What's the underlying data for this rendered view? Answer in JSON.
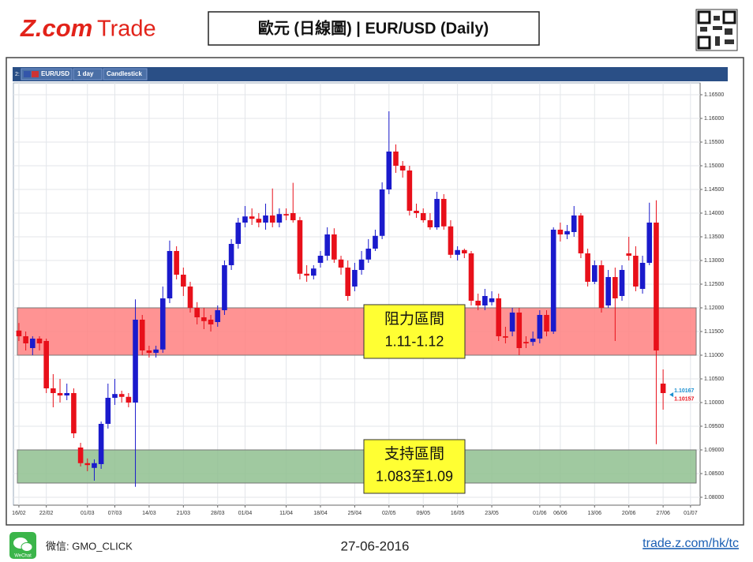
{
  "header": {
    "logo": "Z.com",
    "logo_suffix": "Trade",
    "title": "歐元 (日線圖) | EUR/USD (Daily)"
  },
  "toolbar": {
    "index": "2:",
    "symbol": "EUR/USD",
    "period": "1 day",
    "style": "Candlestick"
  },
  "chart_data": {
    "type": "candlestick",
    "up_color": "#1a1acc",
    "down_color": "#e8101a",
    "grid": true,
    "xlim": [
      -0.8,
      99.4
    ],
    "ylim": [
      1.07833,
      1.1675
    ],
    "xticks": [
      {
        "value": 0,
        "label": "16/02"
      },
      {
        "value": 4,
        "label": "22/02"
      },
      {
        "value": 10,
        "label": "01/03"
      },
      {
        "value": 14,
        "label": "07/03"
      },
      {
        "value": 19,
        "label": "14/03"
      },
      {
        "value": 24,
        "label": "21/03"
      },
      {
        "value": 29,
        "label": "28/03"
      },
      {
        "value": 33,
        "label": "01/04"
      },
      {
        "value": 39,
        "label": "11/04"
      },
      {
        "value": 44,
        "label": "18/04"
      },
      {
        "value": 49,
        "label": "25/04"
      },
      {
        "value": 54,
        "label": "02/05"
      },
      {
        "value": 59,
        "label": "09/05"
      },
      {
        "value": 64,
        "label": "16/05"
      },
      {
        "value": 69,
        "label": "23/05"
      },
      {
        "value": 76,
        "label": "01/06"
      },
      {
        "value": 79,
        "label": "06/06"
      },
      {
        "value": 84,
        "label": "13/06"
      },
      {
        "value": 89,
        "label": "20/06"
      },
      {
        "value": 94,
        "label": "27/06"
      },
      {
        "value": 98,
        "label": "01/07"
      }
    ],
    "yticks": [
      {
        "value": 1.165,
        "label": "1.16500"
      },
      {
        "value": 1.16,
        "label": "1.16000"
      },
      {
        "value": 1.155,
        "label": "1.15500"
      },
      {
        "value": 1.15,
        "label": "1.15000"
      },
      {
        "value": 1.145,
        "label": "1.14500"
      },
      {
        "value": 1.14,
        "label": "1.14000"
      },
      {
        "value": 1.135,
        "label": "1.13500"
      },
      {
        "value": 1.13,
        "label": "1.13000"
      },
      {
        "value": 1.125,
        "label": "1.12500"
      },
      {
        "value": 1.12,
        "label": "1.12000"
      },
      {
        "value": 1.115,
        "label": "1.11500"
      },
      {
        "value": 1.11,
        "label": "1.11000"
      },
      {
        "value": 1.105,
        "label": "1.10500"
      },
      {
        "value": 1.1,
        "label": "1.10000"
      },
      {
        "value": 1.095,
        "label": "1.09500"
      },
      {
        "value": 1.09,
        "label": "1.09000"
      },
      {
        "value": 1.085,
        "label": "1.08500"
      },
      {
        "value": 1.08,
        "label": "1.08000"
      }
    ],
    "open": [
      1.1152,
      1.114,
      1.1115,
      1.1135,
      1.113,
      1.103,
      1.102,
      1.1015,
      1.102,
      1.0905,
      1.0872,
      1.0862,
      1.087,
      1.0955,
      1.101,
      1.1018,
      1.1012,
      1.1,
      1.1175,
      1.111,
      1.1105,
      1.1112,
      1.122,
      1.132,
      1.127,
      1.1245,
      1.12,
      1.118,
      1.1175,
      1.117,
      1.1195,
      1.129,
      1.1335,
      1.138,
      1.1393,
      1.1388,
      1.138,
      1.1395,
      1.138,
      1.1398,
      1.14,
      1.1385,
      1.1272,
      1.1268,
      1.1295,
      1.131,
      1.1355,
      1.1302,
      1.1285,
      1.1245,
      1.128,
      1.1302,
      1.1325,
      1.1352,
      1.145,
      1.153,
      1.15,
      1.149,
      1.1405,
      1.14,
      1.1385,
      1.137,
      1.143,
      1.1372,
      1.1312,
      1.1322,
      1.1315,
      1.1215,
      1.1205,
      1.1212,
      1.122,
      1.114,
      1.115,
      1.119,
      1.1128,
      1.1128,
      1.1135,
      1.1185,
      1.115,
      1.1365,
      1.1355,
      1.136,
      1.1395,
      1.1315,
      1.1255,
      1.129,
      1.1205,
      1.1265,
      1.1225,
      1.1315,
      1.131,
      1.124,
      1.1295,
      1.138,
      1.104
    ],
    "high": [
      1.1168,
      1.115,
      1.114,
      1.114,
      1.1135,
      1.106,
      1.105,
      1.104,
      1.103,
      1.0915,
      1.0882,
      1.088,
      1.096,
      1.104,
      1.105,
      1.1025,
      1.102,
      1.1218,
      1.1185,
      1.112,
      1.112,
      1.1245,
      1.1342,
      1.133,
      1.1285,
      1.1255,
      1.1212,
      1.12,
      1.1185,
      1.1205,
      1.13,
      1.1345,
      1.139,
      1.1415,
      1.141,
      1.14,
      1.142,
      1.1452,
      1.141,
      1.141,
      1.1464,
      1.1392,
      1.129,
      1.129,
      1.132,
      1.137,
      1.1368,
      1.131,
      1.13,
      1.1295,
      1.132,
      1.1345,
      1.1365,
      1.1465,
      1.1615,
      1.1545,
      1.151,
      1.15,
      1.142,
      1.141,
      1.14,
      1.1445,
      1.144,
      1.1385,
      1.133,
      1.1325,
      1.132,
      1.123,
      1.124,
      1.1235,
      1.123,
      1.116,
      1.12,
      1.12,
      1.114,
      1.115,
      1.1195,
      1.1195,
      1.137,
      1.138,
      1.1375,
      1.1415,
      1.14,
      1.1325,
      1.13,
      1.13,
      1.128,
      1.1285,
      1.129,
      1.135,
      1.133,
      1.131,
      1.1422,
      1.1427,
      1.107
    ],
    "low": [
      1.113,
      1.111,
      1.11,
      1.111,
      1.102,
      1.099,
      1.1,
      1.1005,
      1.0925,
      1.0865,
      1.0855,
      1.0835,
      1.086,
      1.0945,
      1.0995,
      1.1,
      1.099,
      1.0822,
      1.11,
      1.1095,
      1.1095,
      1.1105,
      1.121,
      1.126,
      1.1225,
      1.119,
      1.1165,
      1.1155,
      1.115,
      1.116,
      1.1185,
      1.128,
      1.1325,
      1.137,
      1.1375,
      1.137,
      1.1365,
      1.137,
      1.137,
      1.1385,
      1.138,
      1.126,
      1.1255,
      1.126,
      1.1285,
      1.13,
      1.1295,
      1.127,
      1.1215,
      1.1235,
      1.127,
      1.1295,
      1.132,
      1.1345,
      1.144,
      1.1485,
      1.1475,
      1.1395,
      1.139,
      1.138,
      1.1365,
      1.1365,
      1.1365,
      1.1305,
      1.13,
      1.1305,
      1.1205,
      1.1195,
      1.1195,
      1.1205,
      1.113,
      1.1125,
      1.114,
      1.11,
      1.1115,
      1.112,
      1.1125,
      1.114,
      1.1145,
      1.134,
      1.1345,
      1.135,
      1.1305,
      1.1245,
      1.125,
      1.119,
      1.12,
      1.113,
      1.1215,
      1.13,
      1.1235,
      1.123,
      1.129,
      1.0912,
      1.0985
    ],
    "close": [
      1.114,
      1.1125,
      1.1135,
      1.1125,
      1.103,
      1.102,
      1.1015,
      1.102,
      1.0935,
      1.0872,
      1.0868,
      1.0872,
      1.0955,
      1.101,
      1.1018,
      1.1012,
      1.1,
      1.1175,
      1.111,
      1.1105,
      1.1112,
      1.122,
      1.132,
      1.127,
      1.1245,
      1.12,
      1.118,
      1.1172,
      1.1165,
      1.1195,
      1.129,
      1.1335,
      1.138,
      1.1393,
      1.1388,
      1.138,
      1.1395,
      1.138,
      1.1398,
      1.1395,
      1.1385,
      1.1272,
      1.1268,
      1.1283,
      1.131,
      1.1355,
      1.1302,
      1.1285,
      1.1225,
      1.128,
      1.1302,
      1.1325,
      1.1352,
      1.145,
      1.153,
      1.15,
      1.149,
      1.1405,
      1.14,
      1.1385,
      1.137,
      1.143,
      1.1372,
      1.1312,
      1.1322,
      1.1315,
      1.1215,
      1.1205,
      1.1225,
      1.122,
      1.114,
      1.1137,
      1.119,
      1.1115,
      1.1125,
      1.1135,
      1.1185,
      1.115,
      1.1365,
      1.1355,
      1.1362,
      1.1395,
      1.1315,
      1.1255,
      1.129,
      1.12,
      1.1265,
      1.122,
      1.128,
      1.131,
      1.1245,
      1.1295,
      1.138,
      1.111,
      1.102
    ],
    "bands": [
      {
        "name": "阻力區間",
        "label": "1.11-1.12",
        "range": [
          1.11,
          1.12
        ],
        "color": "#ff8080"
      },
      {
        "name": "支持區間",
        "label": "1.083至1.09",
        "range": [
          1.083,
          1.09
        ],
        "color": "#8fbf8f"
      }
    ],
    "last_labels": [
      {
        "value": 1.10167,
        "label": "1.10167",
        "color": "#1a8fd0"
      },
      {
        "value": 1.10157,
        "label": "1.10157",
        "color": "#e8101a"
      }
    ]
  },
  "footer": {
    "wechat": "WeChat",
    "account": "微信: GMO_CLICK",
    "date": "27-06-2016",
    "link": "trade.z.com/hk/tc"
  }
}
